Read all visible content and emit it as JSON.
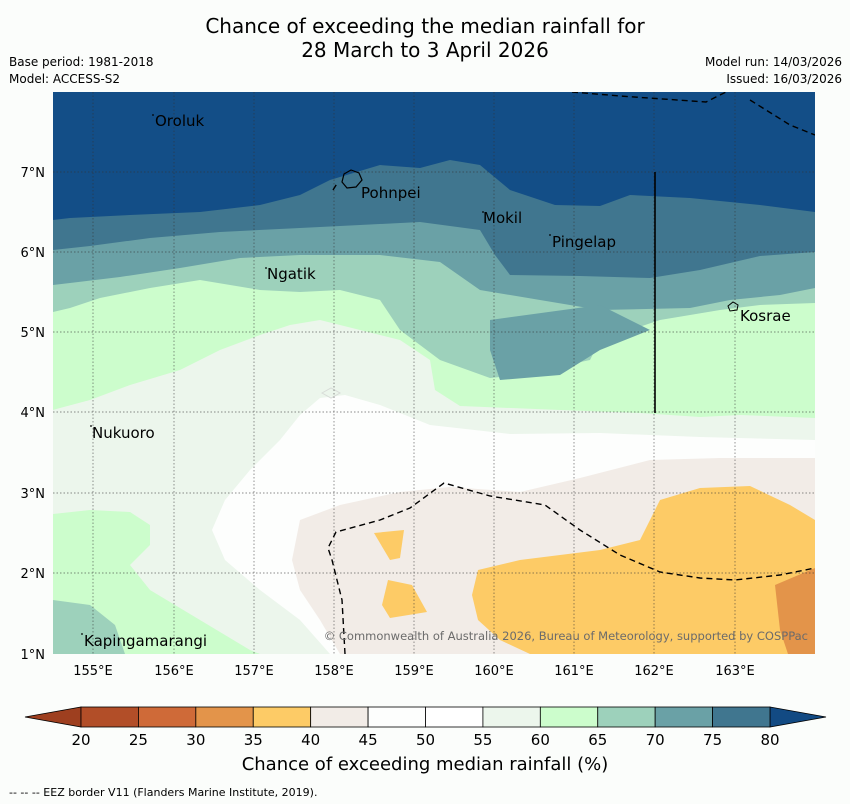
{
  "title": {
    "line1": "Chance of exceeding the median rainfall for",
    "line2": "28 March to 3 April 2026"
  },
  "meta": {
    "base_period": "Base period: 1981-2018",
    "model": "Model: ACCESS-S2",
    "model_run": "Model run: 14/03/2026",
    "issued": "Issued: 16/03/2026"
  },
  "map": {
    "lon_ticks": [
      "155°E",
      "156°E",
      "157°E",
      "158°E",
      "159°E",
      "160°E",
      "161°E",
      "162°E",
      "163°E"
    ],
    "lat_ticks": [
      "7°N",
      "6°N",
      "5°N",
      "4°N",
      "3°N",
      "2°N",
      "1°N"
    ],
    "places": [
      "Oroluk",
      "Pohnpei",
      "Mokil",
      "Pingelap",
      "Ngatik",
      "Kosrae",
      "Nukuoro",
      "Kapingamarangi"
    ],
    "copyright": "© Commonwealth of Australia 2026, Bureau of Meteorology, supported by COSPPac"
  },
  "colorbar": {
    "ticks": [
      "20",
      "25",
      "30",
      "35",
      "40",
      "45",
      "50",
      "55",
      "60",
      "65",
      "70",
      "75",
      "80"
    ],
    "colors": [
      "#b24e28",
      "#cf6a38",
      "#e3944a",
      "#fdcb66",
      "#f2ece7",
      "#fdfefd",
      "#ffffff",
      "#ecf6ec",
      "#ccfdcc",
      "#9dd1bb",
      "#6aa1a6",
      "#40768f",
      "#134e87"
    ],
    "low_color": "#9e3f1f",
    "high_color": "#124a83",
    "title": "Chance of exceeding median rainfall (%)"
  },
  "footer": "--  --  -- EEZ border V11 (Flanders Marine Institute, 2019)."
}
